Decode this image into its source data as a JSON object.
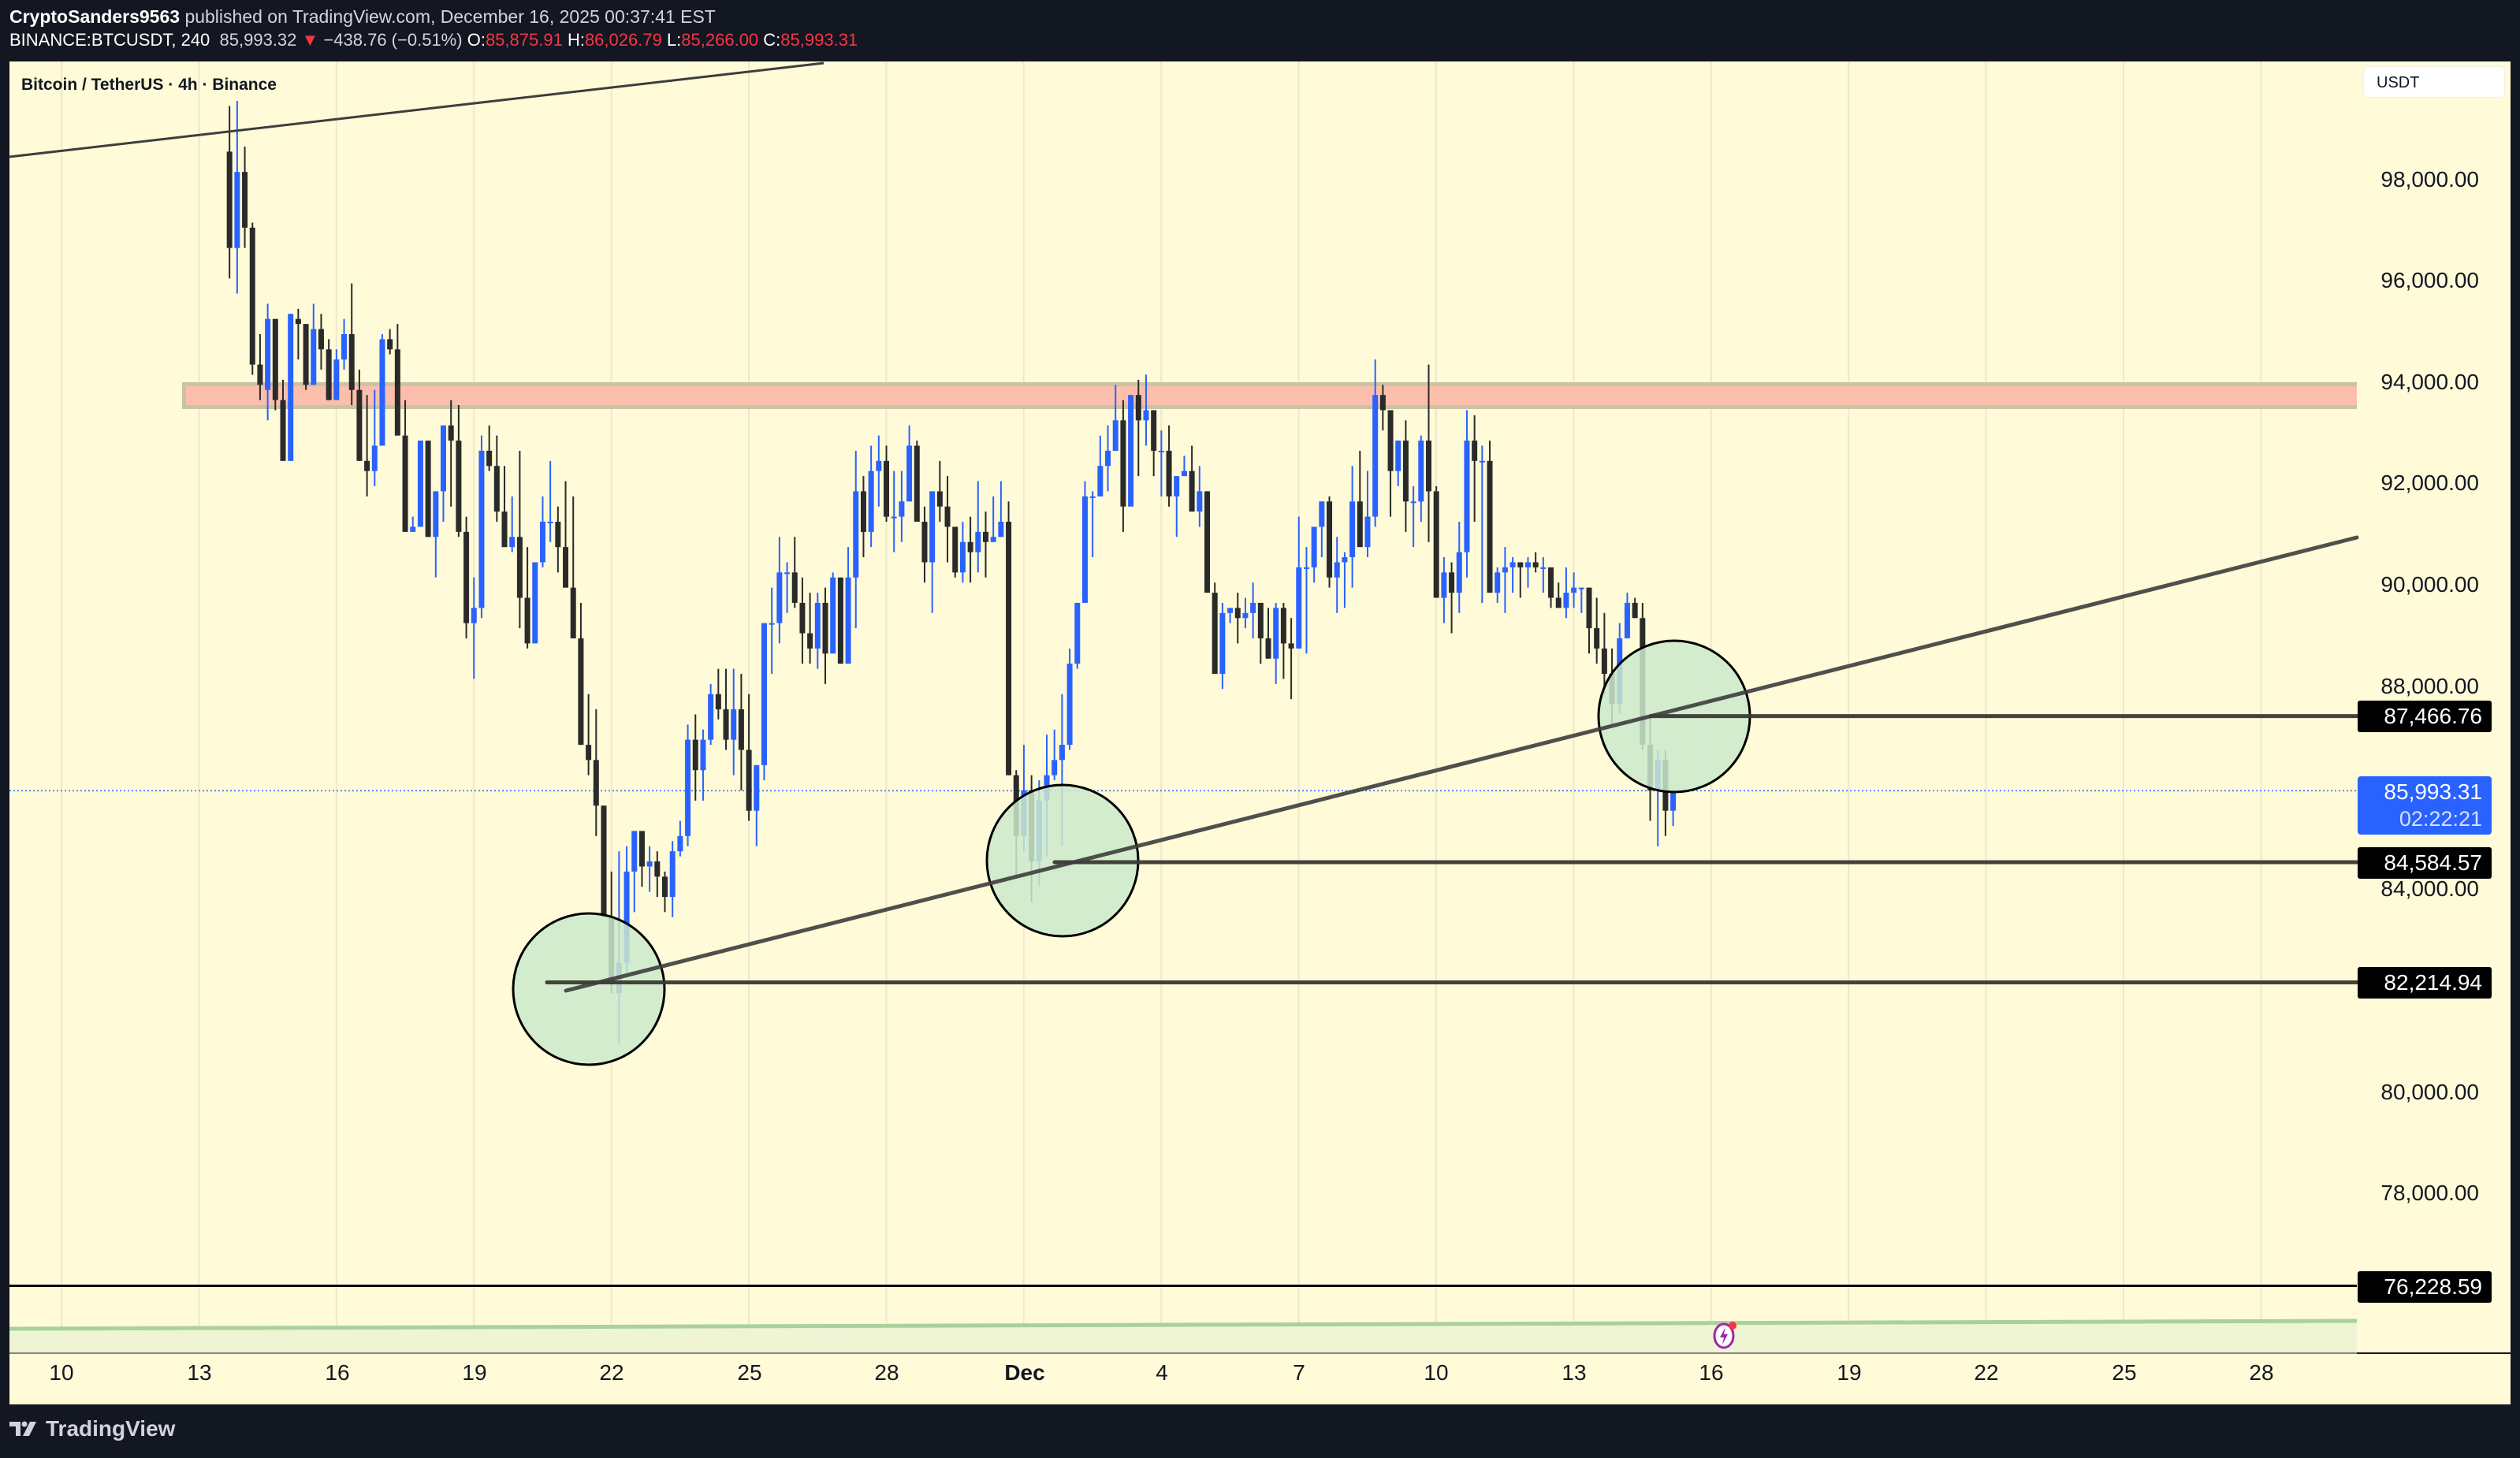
{
  "header": {
    "author": "CryptoSanders9563",
    "published_text": "published on TradingView.com, December 16, 2025 00:37:41 EST",
    "symbol": "BINANCE:BTCUSDT, 240",
    "last": "85,993.32",
    "change_arrow": "▼",
    "change": "−438.76 (−0.51%)",
    "o_label": "O:",
    "o": "85,875.91",
    "h_label": "H:",
    "h": "86,026.79",
    "l_label": "L:",
    "l": "85,266.00",
    "c_label": "C:",
    "c": "85,993.31"
  },
  "legend": {
    "title": "Bitcoin / TetherUS · 4h · Binance"
  },
  "price_axis": {
    "currency": "USDT",
    "ticks": [
      "98,000.00",
      "96,000.00",
      "94,000.00",
      "92,000.00",
      "90,000.00",
      "88,000.00",
      "84,000.00",
      "80,000.00",
      "78,000.00"
    ],
    "level_labels": [
      "87,466.76",
      "84,584.57",
      "82,214.94",
      "76,228.59"
    ],
    "current_price": "85,993.31",
    "countdown": "02:22:21"
  },
  "time_axis": {
    "labels": [
      "10",
      "13",
      "16",
      "19",
      "22",
      "25",
      "28",
      "Dec",
      "4",
      "7",
      "10",
      "13",
      "16",
      "19",
      "22",
      "25",
      "28"
    ]
  },
  "brand": {
    "name": "TradingView"
  },
  "colors": {
    "background": "#fffad8",
    "frame": "#131722",
    "up_candle": "#2962ff",
    "down_candle": "#2a2a2a",
    "resistance_zone": "#fcbfab",
    "resistance_border": "#c8c4a8",
    "circle_fill": "#cde9cc",
    "trendline": "#3d3d3d",
    "level_line": "#3a3a32",
    "current_price": "#2962ff",
    "negative": "#f23645"
  },
  "chart_data": {
    "type": "candlestick",
    "title": "Bitcoin / TetherUS · 4h · Binance",
    "symbol": "BINANCE:BTCUSDT",
    "interval": "4h",
    "xlabel": "",
    "ylabel": "USDT",
    "ylim": [
      74800,
      99600
    ],
    "x_tick_labels": [
      "10",
      "13",
      "16",
      "19",
      "22",
      "25",
      "28",
      "Dec",
      "4",
      "7",
      "10",
      "13",
      "16",
      "19",
      "22",
      "25",
      "28"
    ],
    "y_tick_labels": [
      98000,
      96000,
      94000,
      92000,
      90000,
      88000,
      84000,
      80000,
      78000
    ],
    "candle_fields": [
      "index",
      "open",
      "high",
      "low",
      "close"
    ],
    "index_note": "index 0 = Nov 10 00:00, 6 candles per day",
    "candles": [
      [
        22,
        98600,
        99500,
        96100,
        96700
      ],
      [
        23,
        96700,
        99600,
        95800,
        98200
      ],
      [
        24,
        98200,
        98700,
        96700,
        97100
      ],
      [
        25,
        97100,
        97200,
        94200,
        94400
      ],
      [
        26,
        94400,
        95000,
        93700,
        94000
      ],
      [
        27,
        93900,
        95600,
        93300,
        95300
      ],
      [
        28,
        95300,
        95200,
        93500,
        93700
      ],
      [
        29,
        93700,
        94100,
        92800,
        92500
      ],
      [
        30,
        92500,
        95400,
        92600,
        95400
      ],
      [
        31,
        95300,
        95500,
        94500,
        95200
      ],
      [
        32,
        95200,
        95200,
        93900,
        94000
      ],
      [
        33,
        94000,
        95600,
        94200,
        95100
      ],
      [
        34,
        95100,
        95400,
        94300,
        94700
      ],
      [
        35,
        94700,
        94900,
        93700,
        93700
      ],
      [
        36,
        93700,
        94700,
        94100,
        94500
      ],
      [
        37,
        94500,
        95300,
        94300,
        95000
      ],
      [
        38,
        95000,
        96000,
        93600,
        93900
      ],
      [
        39,
        93900,
        94300,
        92900,
        92500
      ],
      [
        40,
        92500,
        93800,
        91800,
        92300
      ],
      [
        41,
        92300,
        93900,
        92000,
        92800
      ],
      [
        42,
        92800,
        95000,
        93000,
        94900
      ],
      [
        43,
        94900,
        95100,
        94600,
        94700
      ],
      [
        44,
        94700,
        95200,
        94000,
        93000
      ],
      [
        45,
        93000,
        93700,
        91500,
        91100
      ],
      [
        46,
        91100,
        91400,
        91500,
        91200
      ],
      [
        47,
        91200,
        92900,
        91800,
        92900
      ],
      [
        48,
        92900,
        92600,
        91900,
        91000
      ],
      [
        49,
        91000,
        91500,
        90200,
        91900
      ],
      [
        50,
        91900,
        92800,
        91300,
        93200
      ],
      [
        51,
        93200,
        93700,
        91600,
        92900
      ],
      [
        52,
        92900,
        93600,
        91000,
        91100
      ],
      [
        53,
        91100,
        91400,
        89000,
        89300
      ],
      [
        54,
        89300,
        90200,
        88200,
        89600
      ],
      [
        55,
        89600,
        93000,
        89400,
        92700
      ],
      [
        56,
        92700,
        93200,
        92300,
        92400
      ],
      [
        57,
        92400,
        93000,
        91300,
        91500
      ],
      [
        58,
        91500,
        92400,
        90900,
        90800
      ],
      [
        59,
        90800,
        91800,
        90700,
        91000
      ],
      [
        60,
        91000,
        92700,
        89200,
        89800
      ],
      [
        61,
        89800,
        90800,
        88800,
        88900
      ],
      [
        62,
        88900,
        90400,
        89000,
        90500
      ],
      [
        63,
        90500,
        91800,
        90400,
        91300
      ],
      [
        64,
        91300,
        92500,
        90900,
        91300
      ],
      [
        65,
        91300,
        91600,
        90300,
        90800
      ],
      [
        66,
        90800,
        92100,
        90600,
        90000
      ],
      [
        67,
        90000,
        91800,
        89100,
        89000
      ],
      [
        68,
        89000,
        89700,
        87100,
        86900
      ],
      [
        69,
        86900,
        87900,
        86300,
        86600
      ],
      [
        70,
        86600,
        87600,
        85100,
        85700
      ],
      [
        71,
        85700,
        85700,
        84200,
        83500
      ],
      [
        72,
        83500,
        84400,
        82000,
        82200
      ],
      [
        73,
        82000,
        84800,
        81000,
        82600
      ],
      [
        74,
        82600,
        84900,
        82400,
        84400
      ],
      [
        75,
        84400,
        85100,
        83600,
        85200
      ],
      [
        76,
        85200,
        85200,
        84100,
        84500
      ],
      [
        77,
        84500,
        84900,
        84000,
        84600
      ],
      [
        78,
        84600,
        84800,
        83900,
        84300
      ],
      [
        79,
        84300,
        84400,
        83600,
        83900
      ],
      [
        80,
        83900,
        85000,
        83500,
        84800
      ],
      [
        81,
        84800,
        85400,
        84700,
        85100
      ],
      [
        82,
        85100,
        87300,
        84900,
        87000
      ],
      [
        83,
        87000,
        87500,
        85800,
        86400
      ],
      [
        84,
        86400,
        87200,
        85800,
        87000
      ],
      [
        85,
        87000,
        88100,
        86900,
        87900
      ],
      [
        86,
        87900,
        88400,
        87400,
        87600
      ],
      [
        87,
        87600,
        88400,
        86800,
        87000
      ],
      [
        88,
        87000,
        88400,
        86300,
        87600
      ],
      [
        89,
        87600,
        88300,
        86000,
        86800
      ],
      [
        90,
        86800,
        87900,
        85400,
        85600
      ],
      [
        91,
        85600,
        86200,
        84900,
        86500
      ],
      [
        92,
        86500,
        89200,
        86200,
        89300
      ],
      [
        93,
        89300,
        90000,
        88300,
        89300
      ],
      [
        94,
        89300,
        91000,
        88900,
        90300
      ],
      [
        95,
        90300,
        90500,
        89500,
        90300
      ],
      [
        96,
        90300,
        91000,
        89600,
        89700
      ],
      [
        97,
        89700,
        90200,
        88500,
        89100
      ],
      [
        98,
        89100,
        89900,
        88500,
        88800
      ],
      [
        99,
        88800,
        89900,
        88400,
        89700
      ],
      [
        100,
        89700,
        90000,
        88100,
        88700
      ],
      [
        101,
        88700,
        90300,
        88700,
        90200
      ],
      [
        102,
        90200,
        90200,
        88500,
        88500
      ],
      [
        103,
        88500,
        90800,
        88600,
        90200
      ],
      [
        104,
        90200,
        92700,
        89200,
        91900
      ],
      [
        105,
        91900,
        92200,
        90600,
        91100
      ],
      [
        106,
        91100,
        92800,
        90800,
        92300
      ],
      [
        107,
        92300,
        93000,
        91600,
        92500
      ],
      [
        108,
        92500,
        92800,
        91300,
        91400
      ],
      [
        109,
        91400,
        92300,
        90700,
        91400
      ],
      [
        110,
        91400,
        92300,
        90900,
        91700
      ],
      [
        111,
        91700,
        93200,
        91900,
        92800
      ],
      [
        112,
        92800,
        92900,
        91500,
        91300
      ],
      [
        113,
        91300,
        91600,
        90100,
        90500
      ],
      [
        114,
        90500,
        91800,
        89500,
        91900
      ],
      [
        115,
        91900,
        92500,
        91300,
        91600
      ],
      [
        116,
        91600,
        92200,
        90500,
        91200
      ],
      [
        117,
        91200,
        91200,
        90200,
        90300
      ],
      [
        118,
        90300,
        91300,
        90100,
        90900
      ],
      [
        119,
        90900,
        91400,
        90100,
        90700
      ],
      [
        120,
        90700,
        92100,
        90300,
        91100
      ],
      [
        121,
        91100,
        91500,
        90200,
        90900
      ],
      [
        122,
        90900,
        91800,
        90900,
        91000
      ],
      [
        123,
        91000,
        92100,
        91000,
        91300
      ],
      [
        124,
        91300,
        91700,
        89700,
        86300
      ],
      [
        125,
        86300,
        86400,
        84300,
        85100
      ],
      [
        126,
        85100,
        86900,
        84800,
        86000
      ],
      [
        127,
        86000,
        86300,
        83800,
        84600
      ],
      [
        128,
        84600,
        86200,
        84100,
        85800
      ],
      [
        129,
        85800,
        87100,
        84700,
        86300
      ],
      [
        130,
        86300,
        87200,
        86200,
        86600
      ],
      [
        131,
        86600,
        87900,
        84900,
        86900
      ],
      [
        132,
        86900,
        88800,
        86800,
        88500
      ],
      [
        133,
        88500,
        89300,
        88400,
        89700
      ],
      [
        134,
        89700,
        92100,
        89800,
        91800
      ],
      [
        135,
        91800,
        91900,
        90600,
        91800
      ],
      [
        136,
        91800,
        93000,
        91900,
        92400
      ],
      [
        137,
        92400,
        93200,
        91900,
        92700
      ],
      [
        138,
        92700,
        94000,
        92700,
        93300
      ],
      [
        139,
        93300,
        93700,
        91100,
        91600
      ],
      [
        140,
        91600,
        93100,
        92600,
        93800
      ],
      [
        141,
        93800,
        94100,
        92200,
        93300
      ],
      [
        142,
        93300,
        94200,
        92800,
        93500
      ],
      [
        143,
        93500,
        93500,
        92200,
        92700
      ],
      [
        144,
        92700,
        93100,
        91800,
        92700
      ],
      [
        145,
        92700,
        93200,
        91600,
        91800
      ],
      [
        146,
        91800,
        92200,
        91000,
        92200
      ],
      [
        147,
        92200,
        92600,
        92200,
        92300
      ],
      [
        148,
        92300,
        92800,
        91700,
        91500
      ],
      [
        149,
        91500,
        92400,
        91200,
        91900
      ],
      [
        150,
        91900,
        91700,
        90600,
        89900
      ],
      [
        151,
        89900,
        90100,
        88400,
        88300
      ],
      [
        152,
        88300,
        89700,
        88000,
        89500
      ],
      [
        153,
        89500,
        89600,
        89300,
        89600
      ],
      [
        154,
        89600,
        89900,
        88900,
        89400
      ],
      [
        155,
        89400,
        89800,
        89200,
        89500
      ],
      [
        156,
        89500,
        90100,
        89000,
        89700
      ],
      [
        157,
        89700,
        89500,
        88500,
        89000
      ],
      [
        158,
        89000,
        89600,
        88800,
        88600
      ],
      [
        159,
        88600,
        89700,
        88100,
        89600
      ],
      [
        160,
        89600,
        89700,
        88200,
        88900
      ],
      [
        161,
        88900,
        89400,
        87800,
        88800
      ],
      [
        162,
        88800,
        91400,
        89000,
        90400
      ],
      [
        163,
        90400,
        90800,
        88700,
        90400
      ],
      [
        164,
        90400,
        91200,
        90100,
        91200
      ],
      [
        165,
        91200,
        91400,
        90600,
        91700
      ],
      [
        166,
        91700,
        91800,
        90000,
        90200
      ],
      [
        167,
        90200,
        91000,
        89500,
        90500
      ],
      [
        168,
        90500,
        90700,
        89600,
        90600
      ],
      [
        169,
        90600,
        92400,
        90000,
        91700
      ],
      [
        170,
        91700,
        92700,
        91400,
        90800
      ],
      [
        171,
        90800,
        92300,
        90600,
        91400
      ],
      [
        172,
        91400,
        94500,
        91200,
        93800
      ],
      [
        173,
        93800,
        94000,
        93100,
        93500
      ],
      [
        174,
        93500,
        93400,
        91400,
        92300
      ],
      [
        175,
        92300,
        92700,
        92000,
        92900
      ],
      [
        176,
        92900,
        93300,
        91100,
        91700
      ],
      [
        177,
        91700,
        92000,
        90800,
        91700
      ],
      [
        178,
        91700,
        93000,
        91300,
        92900
      ],
      [
        179,
        92900,
        94400,
        90900,
        91900
      ],
      [
        180,
        91900,
        92000,
        89800,
        89800
      ],
      [
        181,
        89800,
        90600,
        89300,
        90300
      ],
      [
        182,
        90300,
        90500,
        89100,
        89900
      ],
      [
        183,
        89900,
        91300,
        89500,
        90700
      ],
      [
        184,
        90700,
        93500,
        90200,
        92900
      ],
      [
        185,
        92900,
        93400,
        91300,
        92500
      ],
      [
        186,
        92500,
        92800,
        89700,
        92500
      ],
      [
        187,
        92500,
        92900,
        92100,
        89900
      ],
      [
        188,
        89900,
        90400,
        89700,
        90300
      ],
      [
        189,
        90300,
        90800,
        89500,
        90400
      ],
      [
        190,
        90400,
        90600,
        89900,
        90500
      ],
      [
        191,
        90500,
        90300,
        89800,
        90400
      ],
      [
        192,
        90400,
        90600,
        90000,
        90500
      ],
      [
        193,
        90500,
        90700,
        90300,
        90400
      ],
      [
        194,
        90400,
        90600,
        89900,
        90400
      ],
      [
        195,
        90400,
        90300,
        89600,
        89800
      ],
      [
        196,
        89800,
        90100,
        89700,
        89600
      ],
      [
        197,
        89600,
        90400,
        89400,
        89900
      ],
      [
        198,
        89900,
        90300,
        89600,
        90000
      ],
      [
        199,
        90000,
        90000,
        89500,
        90000
      ],
      [
        200,
        90000,
        90000,
        88700,
        89200
      ],
      [
        201,
        89200,
        89800,
        88500,
        88800
      ],
      [
        202,
        88800,
        89500,
        87900,
        88300
      ],
      [
        203,
        88300,
        88800,
        87300,
        87700
      ],
      [
        204,
        87700,
        89300,
        87500,
        89000
      ],
      [
        205,
        89000,
        89900,
        89000,
        89700
      ],
      [
        206,
        89700,
        89800,
        89600,
        89400
      ],
      [
        207,
        89400,
        89700,
        86800,
        86900
      ],
      [
        208,
        86900,
        87500,
        85400,
        86000
      ],
      [
        209,
        86000,
        86800,
        84900,
        86600
      ],
      [
        210,
        86600,
        86800,
        85100,
        85600
      ],
      [
        211,
        85600,
        86000,
        85300,
        85990
      ]
    ],
    "annotations": {
      "resistance_zone": {
        "low": 93600,
        "high": 94100,
        "label": ""
      },
      "horizontal_levels": [
        87466.76,
        84584.57,
        82214.94,
        76228.59
      ],
      "rising_trendline": {
        "from_price": 82000,
        "to_price": 91000,
        "note": "connects three higher lows"
      },
      "descending_resistance_line": "top-left diagonal",
      "highlight_circles": 3,
      "current_price": 85993.31
    }
  }
}
